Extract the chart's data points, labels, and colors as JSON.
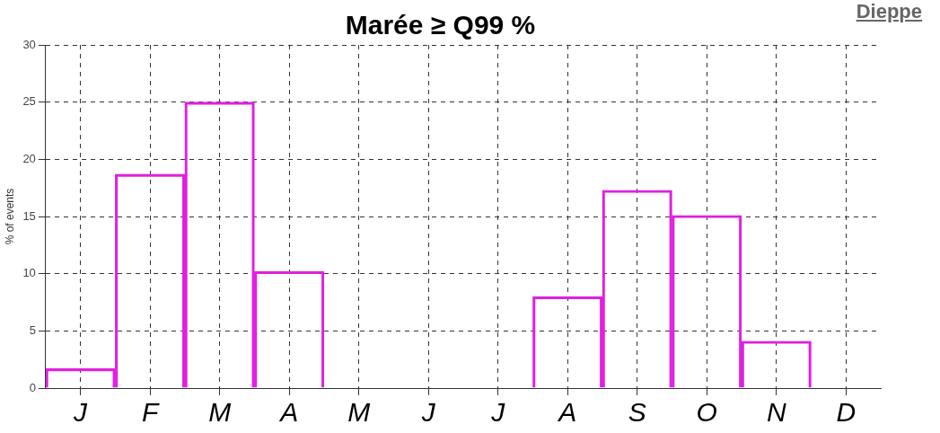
{
  "chart_data": {
    "type": "bar",
    "title": "Marée ≥ Q99 %",
    "ylabel": "% of events",
    "annotations": [
      "Dieppe"
    ],
    "categories": [
      "J",
      "F",
      "M",
      "A",
      "M",
      "J",
      "J",
      "A",
      "S",
      "O",
      "N",
      "D"
    ],
    "values": [
      1.7,
      18.7,
      25.0,
      10.2,
      0,
      0,
      0,
      8.0,
      17.3,
      15.1,
      4.1,
      0
    ],
    "color": "#e020e0",
    "ylim": [
      0,
      30
    ],
    "yticks": [
      0,
      5,
      10,
      15,
      20,
      25,
      30
    ],
    "grid": true
  }
}
